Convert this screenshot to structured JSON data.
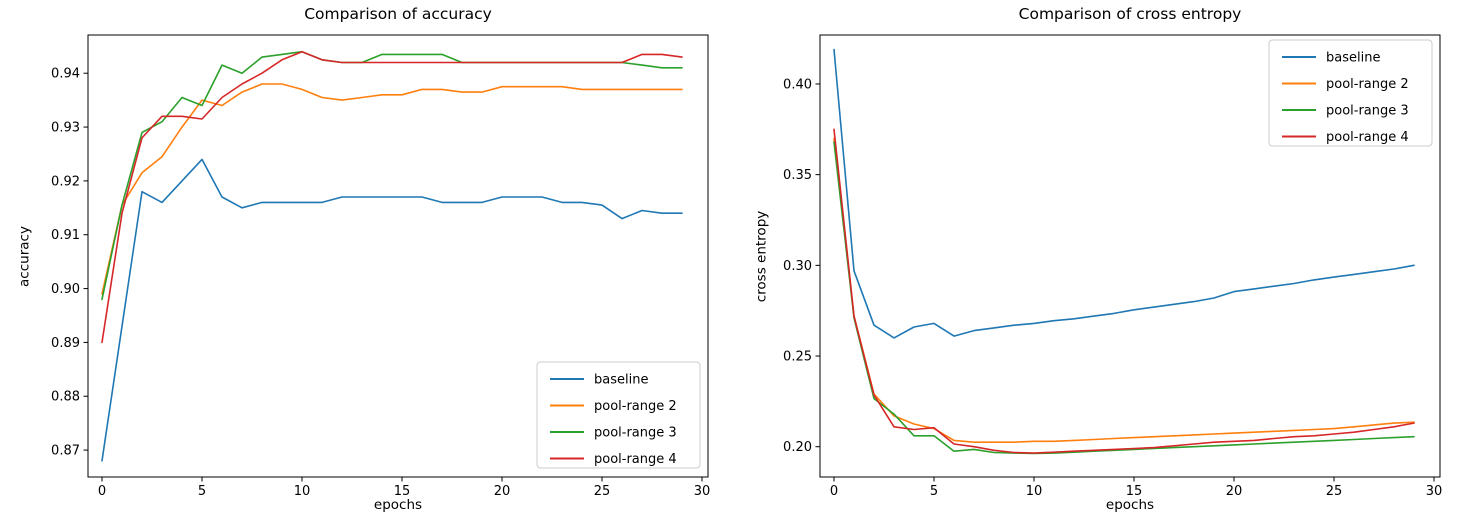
{
  "figure": {
    "background": "#ffffff"
  },
  "palette": {
    "blue": "#1f77b4",
    "orange": "#ff7f0e",
    "green": "#2ca02c",
    "red": "#d62728",
    "spine": "#000000",
    "legend_border": "#cccccc",
    "text": "#000000"
  },
  "chart_data": [
    {
      "type": "line",
      "title": "Comparison of accuracy",
      "xlabel": "epochs",
      "ylabel": "accuracy",
      "grid": false,
      "legend_position": "lower right",
      "legend_entries": [
        "baseline",
        "pool-range 2",
        "pool-range 3",
        "pool-range 4"
      ],
      "x": [
        0,
        1,
        2,
        3,
        4,
        5,
        6,
        7,
        8,
        9,
        10,
        11,
        12,
        13,
        14,
        15,
        16,
        17,
        18,
        19,
        20,
        21,
        22,
        23,
        24,
        25,
        26,
        27,
        28,
        29
      ],
      "xlim": [
        -0.7,
        30.3
      ],
      "ylim": [
        0.865,
        0.9471
      ],
      "xticks": [
        0,
        5,
        10,
        15,
        20,
        25,
        30
      ],
      "yticks": [
        0.87,
        0.88,
        0.89,
        0.9,
        0.91,
        0.92,
        0.93,
        0.94
      ],
      "ytick_decimals": 2,
      "series": [
        {
          "name": "baseline",
          "color": "#1f77b4",
          "values": [
            0.868,
            0.893,
            0.918,
            0.916,
            0.92,
            0.924,
            0.917,
            0.915,
            0.916,
            0.916,
            0.916,
            0.916,
            0.917,
            0.917,
            0.917,
            0.917,
            0.917,
            0.916,
            0.916,
            0.916,
            0.917,
            0.917,
            0.917,
            0.916,
            0.916,
            0.9155,
            0.913,
            0.9145,
            0.914,
            0.914
          ]
        },
        {
          "name": "pool-range 2",
          "color": "#ff7f0e",
          "values": [
            0.899,
            0.9155,
            0.9215,
            0.9245,
            0.93,
            0.935,
            0.934,
            0.9365,
            0.938,
            0.938,
            0.937,
            0.9355,
            0.935,
            0.9355,
            0.936,
            0.936,
            0.937,
            0.937,
            0.9365,
            0.9365,
            0.9375,
            0.9375,
            0.9375,
            0.9375,
            0.937,
            0.937,
            0.937,
            0.937,
            0.937,
            0.937
          ]
        },
        {
          "name": "pool-range 3",
          "color": "#2ca02c",
          "values": [
            0.898,
            0.9155,
            0.929,
            0.931,
            0.9355,
            0.934,
            0.9415,
            0.94,
            0.943,
            0.9435,
            0.944,
            0.9425,
            0.942,
            0.942,
            0.9435,
            0.9435,
            0.9435,
            0.9435,
            0.942,
            0.942,
            0.942,
            0.942,
            0.942,
            0.942,
            0.942,
            0.942,
            0.942,
            0.9415,
            0.941,
            0.941
          ]
        },
        {
          "name": "pool-range 4",
          "color": "#d62728",
          "values": [
            0.89,
            0.914,
            0.928,
            0.932,
            0.932,
            0.9315,
            0.9355,
            0.938,
            0.94,
            0.9425,
            0.944,
            0.9425,
            0.942,
            0.942,
            0.942,
            0.942,
            0.942,
            0.942,
            0.942,
            0.942,
            0.942,
            0.942,
            0.942,
            0.942,
            0.942,
            0.942,
            0.942,
            0.9435,
            0.9435,
            0.943
          ]
        }
      ]
    },
    {
      "type": "line",
      "title": "Comparison of cross entropy",
      "xlabel": "epochs",
      "ylabel": "cross entropy",
      "grid": false,
      "legend_position": "upper right",
      "legend_entries": [
        "baseline",
        "pool-range 2",
        "pool-range 3",
        "pool-range 4"
      ],
      "x": [
        0,
        1,
        2,
        3,
        4,
        5,
        6,
        7,
        8,
        9,
        10,
        11,
        12,
        13,
        14,
        15,
        16,
        17,
        18,
        19,
        20,
        21,
        22,
        23,
        24,
        25,
        26,
        27,
        28,
        29
      ],
      "xlim": [
        -0.7,
        30.3
      ],
      "ylim": [
        0.1833,
        0.427
      ],
      "xticks": [
        0,
        5,
        10,
        15,
        20,
        25,
        30
      ],
      "yticks": [
        0.2,
        0.25,
        0.3,
        0.35,
        0.4
      ],
      "ytick_decimals": 2,
      "series": [
        {
          "name": "baseline",
          "color": "#1f77b4",
          "values": [
            0.419,
            0.297,
            0.267,
            0.26,
            0.266,
            0.268,
            0.261,
            0.264,
            0.2655,
            0.267,
            0.268,
            0.2695,
            0.2705,
            0.272,
            0.2735,
            0.2755,
            0.277,
            0.2785,
            0.28,
            0.282,
            0.2855,
            0.287,
            0.2885,
            0.29,
            0.292,
            0.2935,
            0.295,
            0.2965,
            0.298,
            0.3
          ]
        },
        {
          "name": "pool-range 2",
          "color": "#ff7f0e",
          "values": [
            0.37,
            0.272,
            0.229,
            0.217,
            0.2125,
            0.21,
            0.2035,
            0.2025,
            0.2025,
            0.2025,
            0.203,
            0.203,
            0.2035,
            0.204,
            0.2045,
            0.205,
            0.2055,
            0.206,
            0.2065,
            0.207,
            0.2075,
            0.208,
            0.2085,
            0.209,
            0.2095,
            0.21,
            0.211,
            0.212,
            0.213,
            0.2135
          ]
        },
        {
          "name": "pool-range 3",
          "color": "#2ca02c",
          "values": [
            0.368,
            0.271,
            0.2265,
            0.218,
            0.206,
            0.206,
            0.1975,
            0.1985,
            0.1968,
            0.1965,
            0.1963,
            0.1965,
            0.197,
            0.1975,
            0.198,
            0.1985,
            0.199,
            0.1995,
            0.2,
            0.2005,
            0.201,
            0.2015,
            0.202,
            0.2025,
            0.203,
            0.2035,
            0.204,
            0.2045,
            0.205,
            0.2055
          ]
        },
        {
          "name": "pool-range 4",
          "color": "#d62728",
          "values": [
            0.375,
            0.272,
            0.2285,
            0.211,
            0.2095,
            0.2105,
            0.2015,
            0.2,
            0.198,
            0.1968,
            0.1965,
            0.197,
            0.1975,
            0.198,
            0.1985,
            0.199,
            0.1995,
            0.2005,
            0.2015,
            0.2025,
            0.203,
            0.2035,
            0.2045,
            0.2055,
            0.206,
            0.207,
            0.208,
            0.2095,
            0.211,
            0.213
          ]
        }
      ]
    }
  ]
}
